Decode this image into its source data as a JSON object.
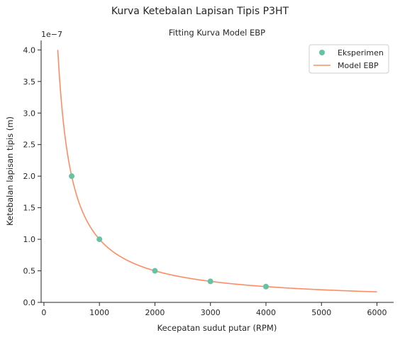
{
  "suptitle": "Kurva Ketebalan Lapisan Tipis P3HT",
  "chart_data": {
    "type": "scatter+line",
    "title": "Fitting Kurva Model EBP",
    "xlabel": "Kecepatan sudut putar (RPM)",
    "ylabel": "Ketebalan lapisan tipis (m)",
    "y_offset_label": "1e−7",
    "xlim": [
      -50,
      6300
    ],
    "ylim": [
      0,
      4.15e-07
    ],
    "x_ticks": [
      0,
      1000,
      2000,
      3000,
      4000,
      5000,
      6000
    ],
    "x_tick_labels": [
      "0",
      "1000",
      "2000",
      "3000",
      "4000",
      "5000",
      "6000"
    ],
    "y_ticks": [
      0,
      5e-08,
      1e-07,
      1.5e-07,
      2e-07,
      2.5e-07,
      3e-07,
      3.5e-07,
      4e-07
    ],
    "y_tick_labels": [
      "0.0",
      "0.5",
      "1.0",
      "1.5",
      "2.0",
      "2.5",
      "3.0",
      "3.5",
      "4.0"
    ],
    "grid": false,
    "legend_position": "top-right",
    "series": [
      {
        "name": "Eksperimen",
        "kind": "scatter",
        "color": "#66c2a5",
        "x": [
          500,
          1000,
          2000,
          3000,
          4000
        ],
        "y": [
          2e-07,
          1e-07,
          5e-08,
          3.33e-08,
          2.5e-08
        ]
      },
      {
        "name": "Model EBP",
        "kind": "line",
        "color": "#fc8d62",
        "model": "y = k / x",
        "k": 0.0001,
        "x_range": [
          250,
          6000
        ]
      }
    ]
  }
}
